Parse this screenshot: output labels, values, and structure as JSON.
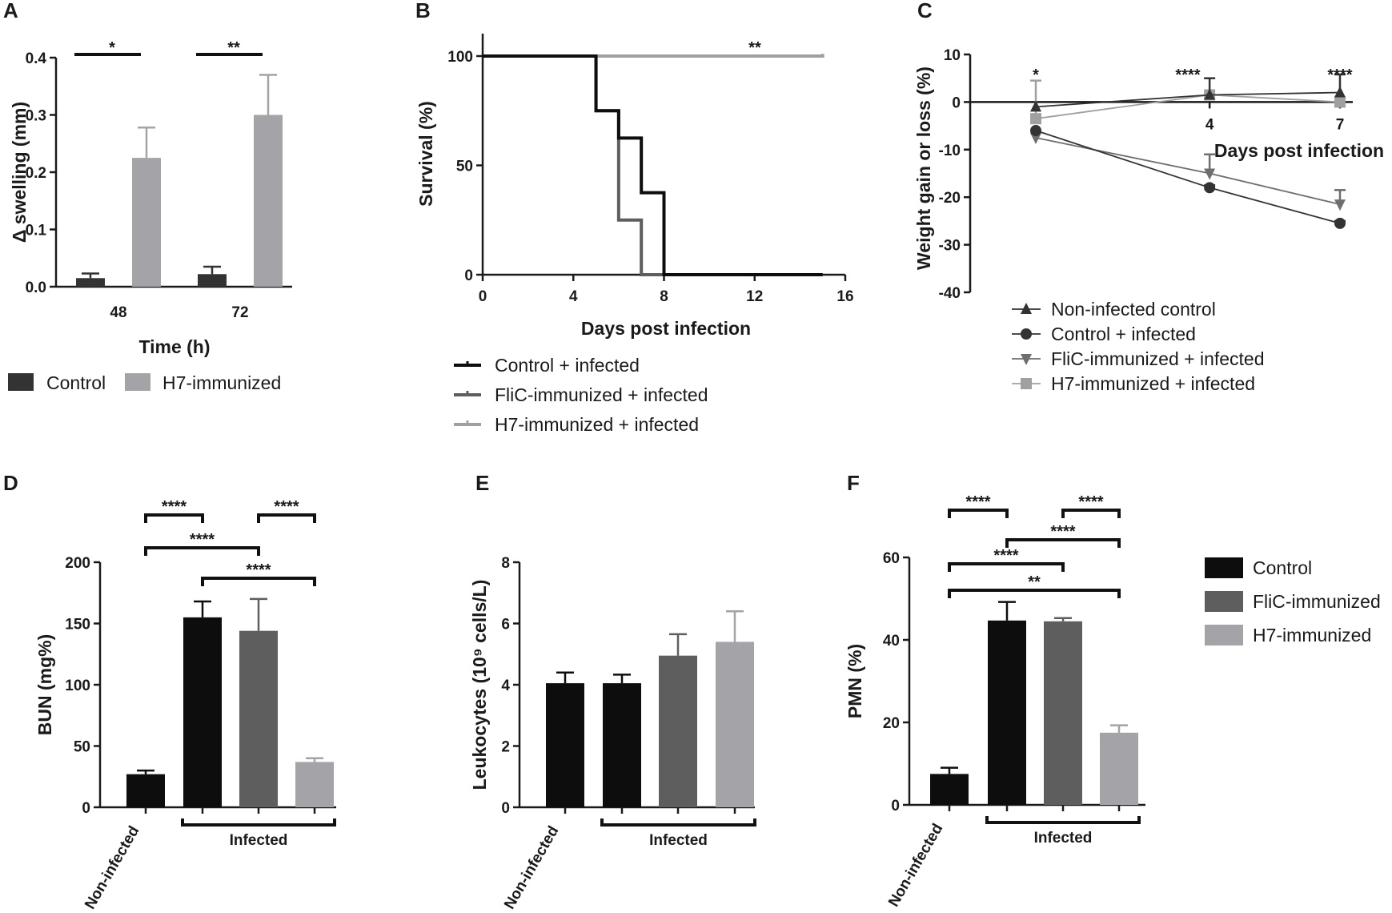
{
  "colors": {
    "black": "#0d0d0d",
    "dark_gray": "#333333",
    "mid_gray": "#5e5e5e",
    "gray": "#8a8a8a",
    "light_gray": "#a3a3a8",
    "lighter_gray": "#b4b4b8"
  },
  "chart_data": [
    {
      "panel": "A",
      "type": "bar",
      "categories": [
        "48",
        "72"
      ],
      "series": [
        {
          "name": "Control",
          "values": [
            0.015,
            0.022
          ],
          "errors": [
            0.008,
            0.013
          ],
          "color": "#333333"
        },
        {
          "name": "H7-immunized",
          "values": [
            0.225,
            0.3
          ],
          "errors": [
            0.053,
            0.07
          ],
          "color": "#a3a3a8"
        }
      ],
      "xlabel": "Time (h)",
      "ylabel": "Δ swelling (mm)",
      "ylim": [
        0,
        0.4
      ],
      "yticks": [
        "0.0",
        "0.1",
        "0.2",
        "0.3",
        "0.4"
      ],
      "significance": [
        "*",
        "**"
      ],
      "legend": [
        "Control",
        "H7-immunized"
      ]
    },
    {
      "panel": "B",
      "type": "line",
      "subtype": "kaplan-meier",
      "series": [
        {
          "name": "Control + infected",
          "x": [
            0,
            5,
            5,
            6,
            6,
            7,
            7,
            8,
            8,
            15
          ],
          "y": [
            100,
            100,
            75,
            75,
            62.5,
            62.5,
            37.5,
            37.5,
            0,
            0
          ],
          "color": "#0d0d0d"
        },
        {
          "name": "FliC-immunized + infected",
          "x": [
            0,
            5,
            5,
            6,
            6,
            7,
            7,
            15
          ],
          "y": [
            100,
            100,
            75,
            75,
            25,
            25,
            0,
            0
          ],
          "color": "#5e5e5e"
        },
        {
          "name": "H7-immunized + infected",
          "x": [
            0,
            15,
            15
          ],
          "y": [
            100,
            100,
            101
          ],
          "color": "#a0a0a0"
        }
      ],
      "xlabel": "Days post infection",
      "ylabel": "Survival (%)",
      "xlim": [
        0,
        16
      ],
      "ylim": [
        0,
        100
      ],
      "xticks": [
        "0",
        "4",
        "8",
        "12",
        "16"
      ],
      "yticks": [
        "0",
        "50",
        "100"
      ],
      "significance": "**",
      "legend": [
        "Control + infected",
        "FliC-immunized + infected",
        "H7-immunized + infected"
      ]
    },
    {
      "panel": "C",
      "type": "line",
      "x": [
        0,
        4,
        7
      ],
      "series": [
        {
          "name": "Non-infected control",
          "values": [
            -1,
            1.5,
            2
          ],
          "errors": [
            0,
            3.5,
            3.8
          ],
          "marker": "triangle-up",
          "color": "#333333"
        },
        {
          "name": "Control + infected",
          "values": [
            -6,
            -18,
            -25.5
          ],
          "errors": [
            0,
            0.5,
            0.5
          ],
          "marker": "circle",
          "color": "#333333"
        },
        {
          "name": "FliC-immunized + infected",
          "values": [
            -7.5,
            -15,
            -21.5
          ],
          "errors": [
            0,
            4,
            3
          ],
          "marker": "triangle-down",
          "color": "#6e6e6e"
        },
        {
          "name": "H7-immunized + infected",
          "values": [
            -3.5,
            1.5,
            0
          ],
          "errors": [
            8,
            0,
            0
          ],
          "marker": "square",
          "color": "#a0a0a0"
        }
      ],
      "xlabel": "Days post infection",
      "ylabel": "Weight gain or loss (%)",
      "ylim": [
        -40,
        10
      ],
      "xticks": [
        "4",
        "7"
      ],
      "yticks": [
        "10",
        "0",
        "-10",
        "-20",
        "-30",
        "-40"
      ],
      "significance": [
        "*",
        "****",
        "****"
      ],
      "legend": [
        "Non-infected control",
        "Control + infected",
        "FliC-immunized + infected",
        "H7-immunized + infected"
      ]
    },
    {
      "panel": "D",
      "type": "bar",
      "categories": [
        "Non-infected",
        "Control",
        "FliC-immunized",
        "H7-immunized"
      ],
      "values": [
        27,
        155,
        144,
        37
      ],
      "errors": [
        3,
        13,
        26,
        3
      ],
      "colors": [
        "#0d0d0d",
        "#0d0d0d",
        "#5e5e5e",
        "#a3a3a8"
      ],
      "ylabel": "BUN (mg%)",
      "ylim": [
        0,
        200
      ],
      "yticks": [
        "0",
        "50",
        "100",
        "150",
        "200"
      ],
      "group_label": "Infected",
      "significance": [
        "****",
        "****",
        "****",
        "****"
      ]
    },
    {
      "panel": "E",
      "type": "bar",
      "categories": [
        "Non-infected",
        "Control",
        "FliC-immunized",
        "H7-immunized"
      ],
      "values": [
        4.05,
        4.05,
        4.95,
        5.4
      ],
      "errors": [
        0.35,
        0.28,
        0.7,
        1.0
      ],
      "colors": [
        "#0d0d0d",
        "#0d0d0d",
        "#5e5e5e",
        "#a3a3a8"
      ],
      "ylabel": "Leukocytes (10⁹ cells/L)",
      "ylim": [
        0,
        8
      ],
      "yticks": [
        "0",
        "2",
        "4",
        "6",
        "8"
      ],
      "group_label": "Infected"
    },
    {
      "panel": "F",
      "type": "bar",
      "categories": [
        "Non-infected",
        "Control",
        "FliC-immunized",
        "H7-immunized"
      ],
      "values": [
        7.5,
        44.7,
        44.5,
        17.5
      ],
      "errors": [
        1.5,
        4.5,
        0.8,
        1.8
      ],
      "colors": [
        "#0d0d0d",
        "#0d0d0d",
        "#5e5e5e",
        "#a3a3a8"
      ],
      "ylabel": "PMN (%)",
      "ylim": [
        0,
        60
      ],
      "yticks": [
        "0",
        "20",
        "40",
        "60"
      ],
      "group_label": "Infected",
      "significance": [
        "****",
        "****",
        "****",
        "****",
        "**"
      ],
      "legend": [
        "Control",
        "FliC-immunized",
        "H7-immunized"
      ]
    }
  ]
}
